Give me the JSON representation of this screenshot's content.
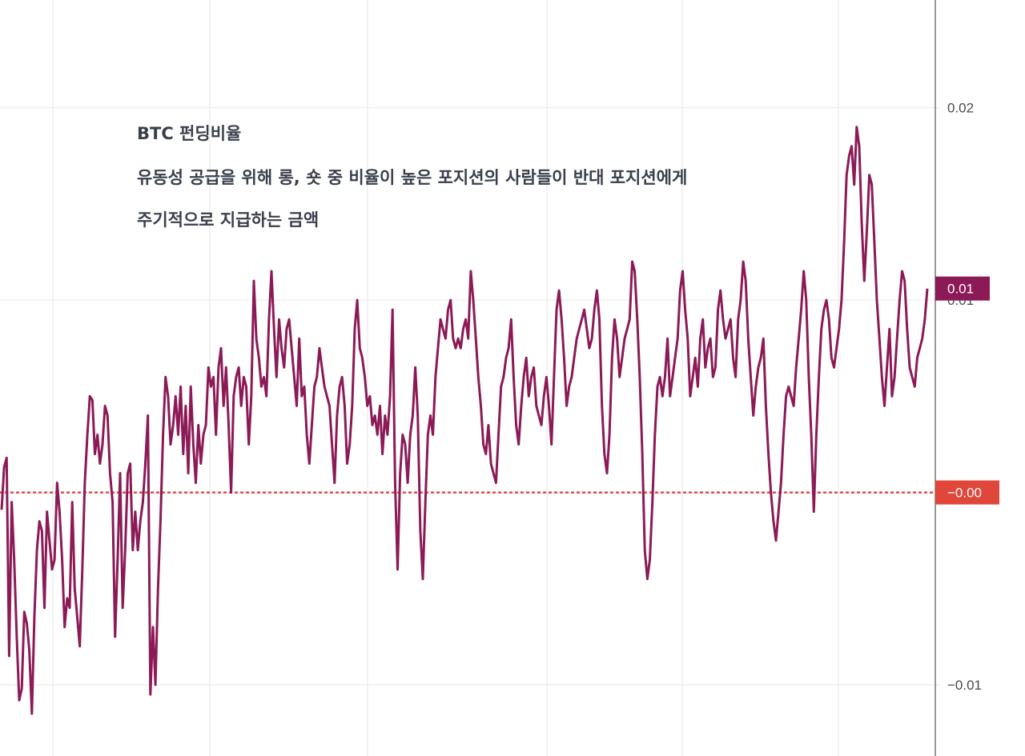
{
  "chart_data": {
    "type": "line",
    "title": "",
    "xlabel": "",
    "ylabel": "",
    "ylim": [
      -0.0137,
      0.0256
    ],
    "y_ticks": [
      {
        "value": 0.02,
        "label": "0.02"
      },
      {
        "value": 0.01,
        "label": "0.01"
      },
      {
        "value": -0.01,
        "label": "−0.01"
      }
    ],
    "annotations": [
      "BTC 펀딩비율",
      "유동성 공급을 위해 롱, 숏 중 비율이 높은 포지션의 사람들이 반대 포지션에게",
      "주기적으로 지급하는 금액"
    ],
    "reference_line": {
      "value": 0,
      "label": "−0.00",
      "style": "dotted"
    },
    "last_value_badge": {
      "value": 0.0106,
      "label": "0.01"
    },
    "grid": true,
    "series": [
      {
        "values": [
          -0.0009,
          0.0013,
          0.0018,
          -0.0085,
          -0.0005,
          -0.0035,
          -0.0075,
          -0.0108,
          -0.0102,
          -0.0062,
          -0.0068,
          -0.0082,
          -0.0115,
          -0.0065,
          -0.003,
          -0.0015,
          -0.002,
          -0.006,
          -0.001,
          -0.0025,
          -0.004,
          -0.0035,
          0.0005,
          -0.001,
          -0.0035,
          -0.007,
          -0.0055,
          -0.006,
          -0.0005,
          -0.005,
          -0.0065,
          -0.008,
          -0.004,
          0.0005,
          0.003,
          0.005,
          0.0048,
          0.002,
          0.003,
          0.0015,
          0.0025,
          0.0045,
          0.004,
          0.001,
          -0.0005,
          -0.0075,
          -0.0035,
          0.001,
          -0.006,
          -0.003,
          0.001,
          0.0015,
          -0.003,
          -0.001,
          -0.003,
          -0.0015,
          -0.0005,
          0.0015,
          0.004,
          -0.0105,
          -0.007,
          -0.01,
          -0.005,
          -0.0015,
          0.003,
          0.006,
          0.005,
          0.0025,
          0.0035,
          0.005,
          0.003,
          0.0055,
          0.002,
          0.0045,
          0.001,
          0.0055,
          0.0025,
          0.0005,
          0.0035,
          0.0015,
          0.003,
          0.0035,
          0.0065,
          0.0055,
          0.006,
          0.003,
          0.0065,
          0.0075,
          0.0045,
          0.0065,
          0.0035,
          0.0,
          0.005,
          0.006,
          0.0065,
          0.0045,
          0.006,
          0.0055,
          0.0025,
          0.005,
          0.011,
          0.008,
          0.007,
          0.0055,
          0.006,
          0.005,
          0.009,
          0.0115,
          0.0085,
          0.006,
          0.009,
          0.0075,
          0.0065,
          0.0085,
          0.009,
          0.0075,
          0.006,
          0.0045,
          0.008,
          0.005,
          0.0055,
          0.003,
          0.0015,
          0.0035,
          0.0055,
          0.006,
          0.0075,
          0.0065,
          0.0055,
          0.005,
          0.0045,
          0.0025,
          0.0005,
          0.004,
          0.0055,
          0.006,
          0.0045,
          0.0015,
          0.0025,
          0.0045,
          0.0085,
          0.01,
          0.0075,
          0.007,
          0.006,
          0.0045,
          0.005,
          0.0035,
          0.004,
          0.003,
          0.0045,
          0.002,
          0.004,
          0.003,
          0.005,
          0.0095,
          0.0005,
          -0.004,
          0.001,
          0.003,
          0.0025,
          0.0005,
          0.003,
          0.004,
          0.0065,
          0.004,
          -0.002,
          -0.0045,
          -0.0005,
          0.003,
          0.004,
          0.003,
          0.006,
          0.0075,
          0.009,
          0.0085,
          0.008,
          0.0095,
          0.01,
          0.008,
          0.0075,
          0.008,
          0.0075,
          0.0085,
          0.009,
          0.008,
          0.0115,
          0.01,
          0.008,
          0.006,
          0.0045,
          0.0025,
          0.002,
          0.0035,
          0.0015,
          0.001,
          0.0005,
          0.003,
          0.0055,
          0.006,
          0.007,
          0.0075,
          0.009,
          0.006,
          0.0035,
          0.0025,
          0.0045,
          0.006,
          0.007,
          0.005,
          0.006,
          0.0065,
          0.0045,
          0.004,
          0.0035,
          0.005,
          0.006,
          0.0045,
          0.0025,
          0.006,
          0.0095,
          0.0105,
          0.009,
          0.007,
          0.0045,
          0.0055,
          0.006,
          0.007,
          0.008,
          0.0085,
          0.009,
          0.0095,
          0.0085,
          0.0075,
          0.008,
          0.0095,
          0.0105,
          0.009,
          0.0045,
          0.002,
          0.001,
          0.003,
          0.007,
          0.009,
          0.008,
          0.006,
          0.007,
          0.008,
          0.0085,
          0.009,
          0.012,
          0.0115,
          0.009,
          0.006,
          0.002,
          -0.003,
          -0.0045,
          -0.0035,
          -0.0005,
          0.003,
          0.0055,
          0.006,
          0.005,
          0.006,
          0.008,
          0.005,
          0.006,
          0.007,
          0.008,
          0.0105,
          0.0115,
          0.0095,
          0.008,
          0.005,
          0.006,
          0.007,
          0.0055,
          0.008,
          0.009,
          0.0065,
          0.0075,
          0.008,
          0.006,
          0.0065,
          0.0095,
          0.0105,
          0.009,
          0.008,
          0.0085,
          0.009,
          0.007,
          0.006,
          0.009,
          0.01,
          0.012,
          0.011,
          0.008,
          0.006,
          0.004,
          0.0055,
          0.0065,
          0.007,
          0.008,
          0.0045,
          0.002,
          0.0,
          -0.0015,
          -0.0025,
          -0.001,
          0.0005,
          0.003,
          0.005,
          0.0055,
          0.005,
          0.0045,
          0.0065,
          0.008,
          0.0095,
          0.0115,
          0.01,
          0.006,
          0.003,
          -0.001,
          0.003,
          0.006,
          0.0085,
          0.0095,
          0.01,
          0.009,
          0.007,
          0.0065,
          0.0075,
          0.0085,
          0.01,
          0.013,
          0.0165,
          0.0175,
          0.018,
          0.016,
          0.019,
          0.018,
          0.014,
          0.011,
          0.0135,
          0.0165,
          0.016,
          0.013,
          0.01,
          0.008,
          0.006,
          0.0045,
          0.0065,
          0.0085,
          0.005,
          0.006,
          0.008,
          0.01,
          0.0115,
          0.011,
          0.0085,
          0.0065,
          0.006,
          0.0055,
          0.007,
          0.0075,
          0.008,
          0.009,
          0.0106
        ]
      }
    ],
    "colors": {
      "line": "#8b1a56",
      "badge": "#8b1a56",
      "reference": "#e0473a",
      "grid": "#e6e6e6",
      "axis": "#777777"
    }
  }
}
